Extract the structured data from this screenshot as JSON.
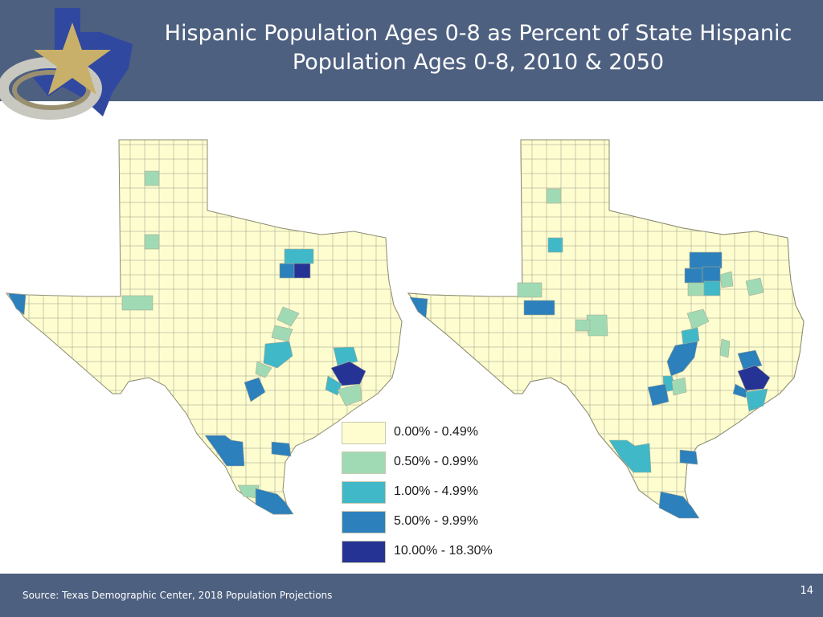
{
  "slide": {
    "title_line1": "Hispanic Population Ages 0-8 as Percent of State Hispanic",
    "title_line2": "Population Ages 0-8, 2010 & 2050",
    "source": "Source: Texas Demographic Center, 2018 Population Projections",
    "page_number": "14"
  },
  "colors": {
    "header_bg": "#4e6080",
    "base_county": "#fefdd0",
    "county_border": "#a8a890"
  },
  "legend": {
    "items": [
      {
        "label": "0.00% - 0.49%",
        "color": "#fefdd0"
      },
      {
        "label": "0.50% - 0.99%",
        "color": "#a0dab4"
      },
      {
        "label": "1.00% - 4.99%",
        "color": "#40b8c8"
      },
      {
        "label": "5.00% - 9.99%",
        "color": "#2c80bc"
      },
      {
        "label": "10.00% - 18.30%",
        "color": "#253494"
      }
    ]
  }
}
